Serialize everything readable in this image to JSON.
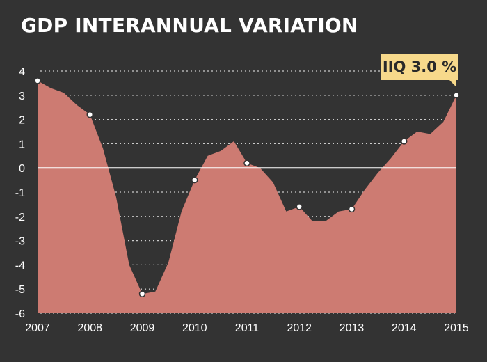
{
  "chart_data": {
    "type": "area",
    "title": "GDP INTERANNUAL VARIATION",
    "xlabel": "",
    "ylabel": "",
    "xlim": [
      2007,
      2015
    ],
    "ylim": [
      -6,
      4
    ],
    "x_ticks": [
      "2007",
      "2008",
      "2009",
      "2010",
      "2011",
      "2012",
      "2013",
      "2014",
      "2015"
    ],
    "y_ticks": [
      "4",
      "3",
      "2",
      "1",
      "0",
      "-1",
      "-2",
      "-3",
      "-4",
      "-5",
      "-6"
    ],
    "grid": "horizontal dotted",
    "colors": {
      "background": "#333333",
      "area_fill": "#cd7b72",
      "grid": "#cccccc",
      "zero_line": "#ffffff",
      "callout_background": "#f7d98b"
    },
    "annotation": {
      "text": "IIQ 3.0 %",
      "x": 2015.0,
      "y": 3.0
    },
    "series": [
      {
        "x": [
          2007.0,
          2007.25,
          2007.5,
          2007.75,
          2008.0,
          2008.25,
          2008.5,
          2008.75,
          2009.0,
          2009.25,
          2009.5,
          2009.75,
          2010.0,
          2010.25,
          2010.5,
          2010.75,
          2011.0,
          2011.25,
          2011.5,
          2011.75,
          2012.0,
          2012.25,
          2012.5,
          2012.75,
          2013.0,
          2013.25,
          2013.5,
          2013.75,
          2014.0,
          2014.25,
          2014.5,
          2014.75,
          2015.0
        ],
        "values": [
          3.6,
          3.3,
          3.1,
          2.6,
          2.2,
          0.8,
          -1.2,
          -4.0,
          -5.2,
          -5.1,
          -3.9,
          -1.8,
          -0.5,
          0.5,
          0.7,
          1.1,
          0.2,
          0.0,
          -0.6,
          -1.8,
          -1.6,
          -2.2,
          -2.2,
          -1.8,
          -1.7,
          -0.9,
          -0.2,
          0.4,
          1.1,
          1.5,
          1.4,
          1.9,
          3.0
        ],
        "markers_at": [
          2007.0,
          2008.0,
          2009.0,
          2010.0,
          2011.0,
          2012.0,
          2013.0,
          2014.0,
          2015.0
        ]
      }
    ]
  }
}
